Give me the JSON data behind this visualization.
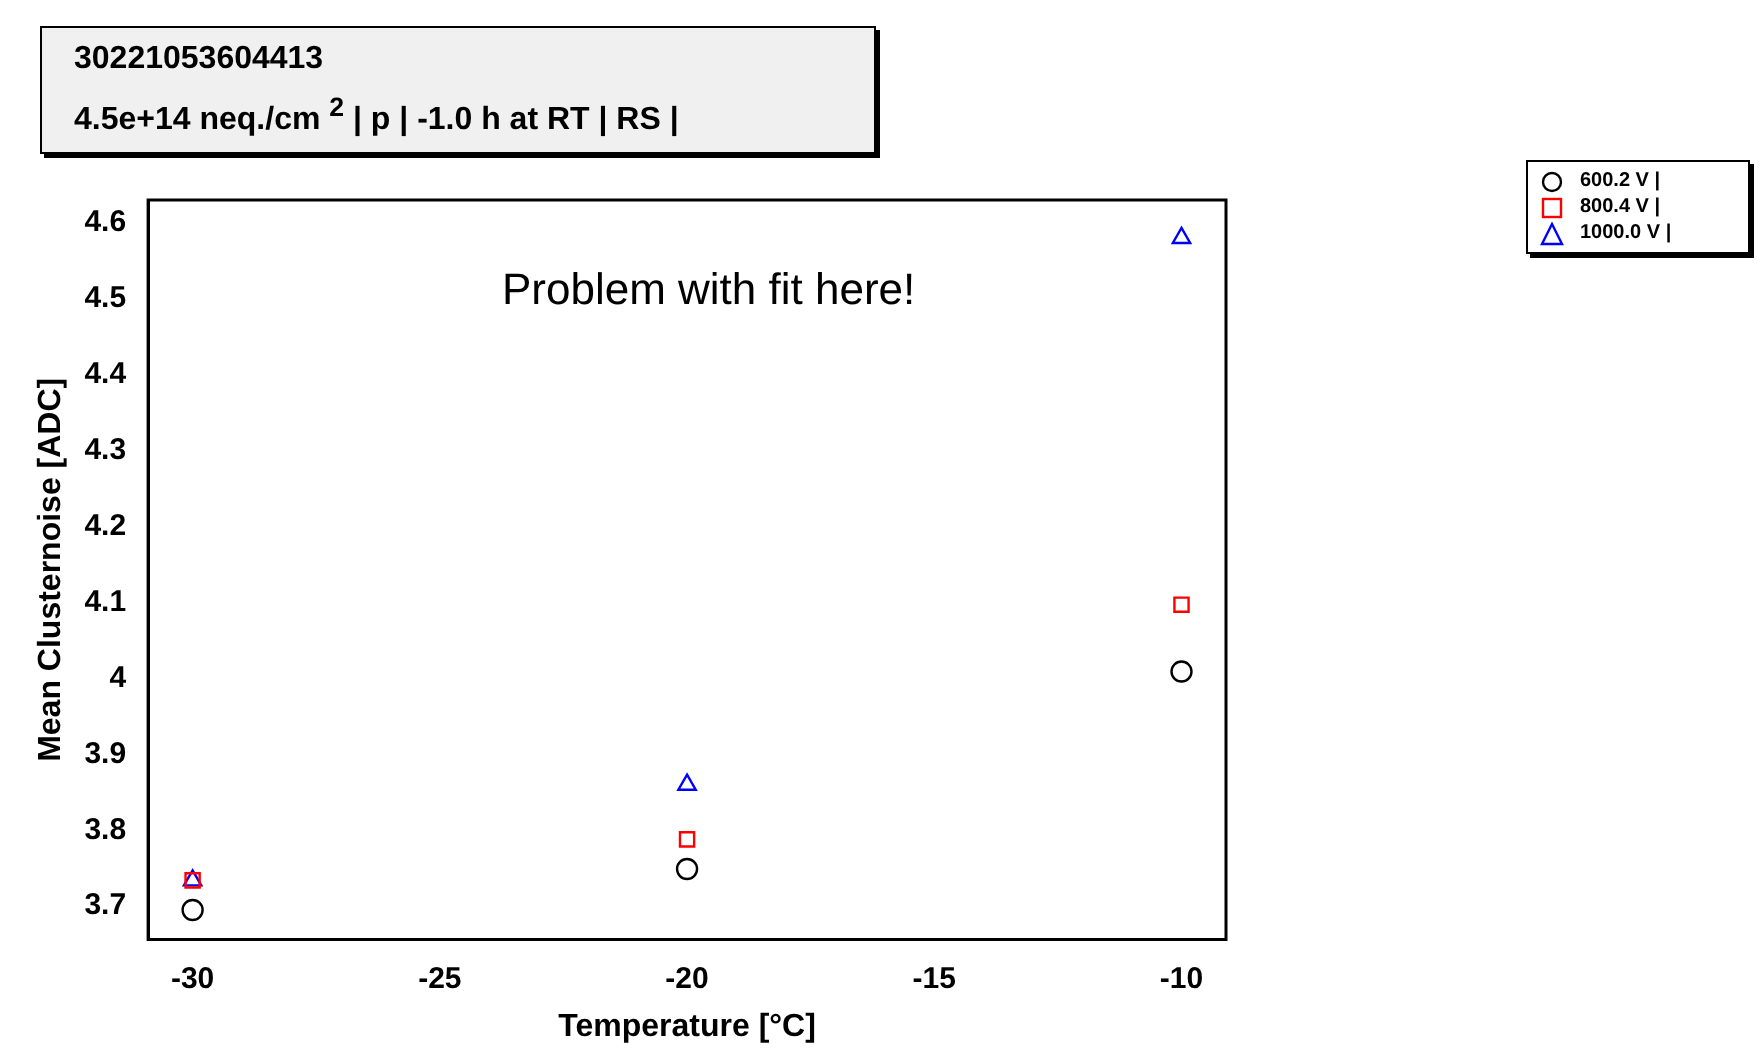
{
  "chart_data": {
    "type": "scatter",
    "title": "30221053604413",
    "subtitle": "4.5e+14 neq./cm $^{2}$ | p | -1.0 h at RT | RS |",
    "xlabel": "Temperature [°C]",
    "ylabel": "Mean Clusternoise [ADC]",
    "annotations": [
      "Problem with fit here!"
    ],
    "x": [
      -30,
      -20,
      -10
    ],
    "series": [
      {
        "name": "600.2 V |",
        "color": "#000000",
        "marker": "circle",
        "values": [
          3.695,
          3.749,
          4.009
        ]
      },
      {
        "name": "800.4 V |",
        "color": "#ff0000",
        "marker": "square",
        "values": [
          3.734,
          3.788,
          4.097
        ]
      },
      {
        "name": "1000.0 V |",
        "color": "#0000ff",
        "marker": "triangle",
        "values": [
          3.734,
          3.86,
          4.58
        ]
      }
    ],
    "xlim": [
      -30.9,
      -9.1
    ],
    "xticks": [
      -30,
      -25,
      -20,
      -15,
      -10
    ],
    "ylim": [
      3.656,
      4.63
    ],
    "yticks": [
      3.7,
      3.8,
      3.9,
      4,
      4.1,
      4.2,
      4.3,
      4.4,
      4.5,
      4.6
    ],
    "grid": false,
    "legend": "top right"
  }
}
